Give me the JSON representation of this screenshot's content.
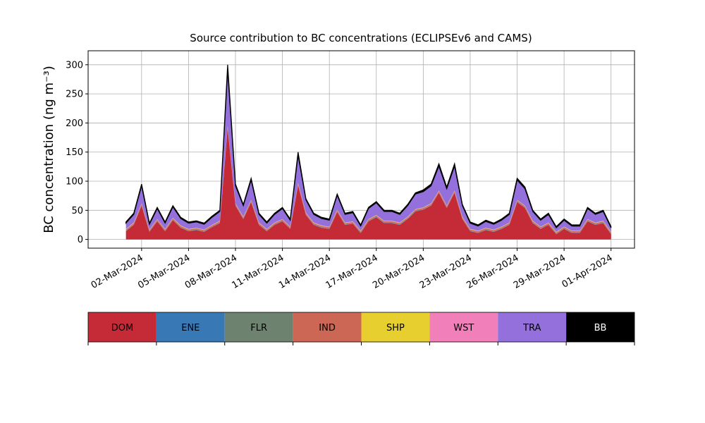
{
  "chart_data": {
    "type": "stacked_area",
    "title": "Source contribution to BC concentrations (ECLIPSEv6 and CAMS)",
    "y_label": "BC concentration (ng m⁻³)",
    "x": [
      "2024-03-01T00:00",
      "2024-03-01T12:00",
      "2024-03-02T00:00",
      "2024-03-02T12:00",
      "2024-03-03T00:00",
      "2024-03-03T12:00",
      "2024-03-04T00:00",
      "2024-03-04T12:00",
      "2024-03-05T00:00",
      "2024-03-05T12:00",
      "2024-03-06T00:00",
      "2024-03-06T12:00",
      "2024-03-07T00:00",
      "2024-03-07T12:00",
      "2024-03-08T00:00",
      "2024-03-08T12:00",
      "2024-03-09T00:00",
      "2024-03-09T12:00",
      "2024-03-10T00:00",
      "2024-03-10T12:00",
      "2024-03-11T00:00",
      "2024-03-11T12:00",
      "2024-03-12T00:00",
      "2024-03-12T12:00",
      "2024-03-13T00:00",
      "2024-03-13T12:00",
      "2024-03-14T00:00",
      "2024-03-14T12:00",
      "2024-03-15T00:00",
      "2024-03-15T12:00",
      "2024-03-16T00:00",
      "2024-03-16T12:00",
      "2024-03-17T00:00",
      "2024-03-17T12:00",
      "2024-03-18T00:00",
      "2024-03-18T12:00",
      "2024-03-19T00:00",
      "2024-03-19T12:00",
      "2024-03-20T00:00",
      "2024-03-20T12:00",
      "2024-03-21T00:00",
      "2024-03-21T12:00",
      "2024-03-22T00:00",
      "2024-03-22T12:00",
      "2024-03-23T00:00",
      "2024-03-23T12:00",
      "2024-03-24T00:00",
      "2024-03-24T12:00",
      "2024-03-25T00:00",
      "2024-03-25T12:00",
      "2024-03-26T00:00",
      "2024-03-26T12:00",
      "2024-03-27T00:00",
      "2024-03-27T12:00",
      "2024-03-28T00:00",
      "2024-03-28T12:00",
      "2024-03-29T00:00",
      "2024-03-29T12:00",
      "2024-03-30T00:00",
      "2024-03-30T12:00",
      "2024-03-31T00:00",
      "2024-03-31T12:00",
      "2024-04-01T00:00"
    ],
    "series": [
      {
        "name": "DOM",
        "color": "#c52a37",
        "values": [
          14,
          25,
          58,
          13,
          31,
          14,
          33,
          20,
          14,
          16,
          13,
          21,
          28,
          191,
          58,
          35,
          64,
          25,
          14,
          25,
          31,
          18,
          93,
          42,
          25,
          20,
          18,
          47,
          25,
          27,
          11,
          31,
          38,
          28,
          28,
          25,
          35,
          48,
          51,
          58,
          80,
          54,
          80,
          35,
          14,
          11,
          16,
          13,
          18,
          25,
          64,
          54,
          28,
          18,
          25,
          9,
          18,
          11,
          11,
          31,
          25,
          28,
          9
        ]
      },
      {
        "name": "ENE",
        "color": "#3878b4",
        "values": [
          0.5,
          0.5,
          0.5,
          0.5,
          0.5,
          0.5,
          0.5,
          0.5,
          0.5,
          0.5,
          0.5,
          0.5,
          0.5,
          0.5,
          0.5,
          0.5,
          0.5,
          0.5,
          0.5,
          0.5,
          0.5,
          0.5,
          0.5,
          0.5,
          0.5,
          0.5,
          0.5,
          0.5,
          0.5,
          0.5,
          0.5,
          0.5,
          0.5,
          0.5,
          0.5,
          0.5,
          0.5,
          0.5,
          0.5,
          0.5,
          0.5,
          0.5,
          0.5,
          0.5,
          0.5,
          0.5,
          0.5,
          0.5,
          0.5,
          0.5,
          0.5,
          0.5,
          0.5,
          0.5,
          0.5,
          0.5,
          0.5,
          0.5,
          0.5,
          0.5,
          0.5,
          0.5,
          0.5
        ]
      },
      {
        "name": "FLR",
        "color": "#6e8270",
        "values": [
          0.5,
          0.5,
          0.5,
          0.5,
          0.5,
          0.5,
          0.5,
          0.5,
          0.5,
          0.5,
          0.5,
          0.5,
          0.5,
          0.5,
          0.5,
          0.5,
          0.5,
          0.5,
          0.5,
          0.5,
          0.5,
          0.5,
          0.5,
          0.5,
          0.5,
          0.5,
          0.5,
          0.5,
          0.5,
          0.5,
          0.5,
          0.5,
          0.5,
          0.5,
          0.5,
          0.5,
          0.5,
          0.5,
          0.5,
          0.5,
          0.5,
          0.5,
          0.5,
          0.5,
          0.5,
          0.5,
          0.5,
          0.5,
          0.5,
          0.5,
          0.5,
          0.5,
          0.5,
          0.5,
          0.5,
          0.5,
          0.5,
          0.5,
          0.5,
          0.5,
          0.5,
          0.5,
          0.5
        ]
      },
      {
        "name": "IND",
        "color": "#cc6655",
        "values": [
          2,
          2,
          2,
          2,
          2,
          2,
          2,
          2,
          2,
          2,
          2,
          2,
          2,
          2,
          2,
          2,
          2,
          2,
          2,
          2,
          2,
          2,
          2,
          2,
          2,
          2,
          2,
          2,
          2,
          2,
          2,
          2,
          2,
          2,
          2,
          2,
          2,
          2,
          2,
          2,
          2,
          2,
          2,
          2,
          2,
          2,
          2,
          2,
          2,
          2,
          2,
          2,
          2,
          2,
          2,
          2,
          2,
          2,
          2,
          2,
          2,
          2,
          2
        ]
      },
      {
        "name": "SHP",
        "color": "#e6cf2e",
        "values": [
          0.5,
          0.5,
          0.5,
          0.5,
          0.5,
          0.5,
          0.5,
          0.5,
          0.5,
          0.5,
          0.5,
          0.5,
          0.5,
          0.5,
          0.5,
          0.5,
          0.5,
          0.5,
          0.5,
          0.5,
          0.5,
          0.5,
          0.5,
          0.5,
          0.5,
          0.5,
          0.5,
          0.5,
          0.5,
          0.5,
          0.5,
          0.5,
          0.5,
          0.5,
          0.5,
          0.5,
          0.5,
          0.5,
          0.5,
          0.5,
          0.5,
          0.5,
          0.5,
          0.5,
          0.5,
          0.5,
          0.5,
          0.5,
          0.5,
          0.5,
          0.5,
          0.5,
          0.5,
          0.5,
          0.5,
          0.5,
          0.5,
          0.5,
          0.5,
          0.5,
          0.5,
          0.5,
          0.5
        ]
      },
      {
        "name": "WST",
        "color": "#f07fba",
        "values": [
          0.5,
          0.5,
          0.5,
          0.5,
          0.5,
          0.5,
          0.5,
          0.5,
          0.5,
          0.5,
          0.5,
          0.5,
          0.5,
          0.5,
          0.5,
          0.5,
          0.5,
          0.5,
          0.5,
          0.5,
          0.5,
          0.5,
          0.5,
          0.5,
          0.5,
          0.5,
          0.5,
          0.5,
          0.5,
          0.5,
          0.5,
          0.5,
          0.5,
          0.5,
          0.5,
          0.5,
          0.5,
          0.5,
          0.5,
          0.5,
          0.5,
          0.5,
          0.5,
          0.5,
          0.5,
          0.5,
          0.5,
          0.5,
          0.5,
          0.5,
          0.5,
          0.5,
          0.5,
          0.5,
          0.5,
          0.5,
          0.5,
          0.5,
          0.5,
          0.5,
          0.5,
          0.5,
          0.5
        ]
      },
      {
        "name": "TRA",
        "color": "#9370db",
        "values": [
          10,
          14,
          30,
          9,
          18,
          10,
          19,
          12,
          10,
          10,
          9,
          13,
          16,
          96,
          30,
          19,
          34,
          14,
          10,
          14,
          18,
          11,
          48,
          22,
          14,
          12,
          11,
          25,
          14,
          15,
          8,
          18,
          21,
          16,
          16,
          14,
          19,
          26,
          27,
          30,
          42,
          29,
          42,
          19,
          10,
          8,
          11,
          9,
          11,
          14,
          34,
          29,
          16,
          11,
          14,
          7,
          11,
          8,
          8,
          18,
          14,
          16,
          7
        ]
      },
      {
        "name": "BB",
        "color": "#000000",
        "values": [
          2,
          2,
          3,
          2,
          2,
          2,
          2,
          2,
          2,
          2,
          2,
          2,
          2,
          9,
          3,
          2,
          3,
          2,
          2,
          2,
          2,
          2,
          5,
          2,
          2,
          2,
          2,
          2,
          2,
          2,
          2,
          2,
          2,
          2,
          2,
          2,
          2,
          2,
          3,
          3,
          4,
          3,
          4,
          2,
          2,
          2,
          2,
          2,
          2,
          2,
          3,
          3,
          2,
          2,
          2,
          2,
          2,
          2,
          2,
          2,
          2,
          2,
          2
        ]
      }
    ],
    "xlim": [
      "2024-02-27T14:00",
      "2024-04-02T12:00"
    ],
    "xticks": [
      {
        "value": "2024-03-02T00:00",
        "label": "02-Mar-2024"
      },
      {
        "value": "2024-03-05T00:00",
        "label": "05-Mar-2024"
      },
      {
        "value": "2024-03-08T00:00",
        "label": "08-Mar-2024"
      },
      {
        "value": "2024-03-11T00:00",
        "label": "11-Mar-2024"
      },
      {
        "value": "2024-03-14T00:00",
        "label": "14-Mar-2024"
      },
      {
        "value": "2024-03-17T00:00",
        "label": "17-Mar-2024"
      },
      {
        "value": "2024-03-20T00:00",
        "label": "20-Mar-2024"
      },
      {
        "value": "2024-03-23T00:00",
        "label": "23-Mar-2024"
      },
      {
        "value": "2024-03-26T00:00",
        "label": "26-Mar-2024"
      },
      {
        "value": "2024-03-29T00:00",
        "label": "29-Mar-2024"
      },
      {
        "value": "2024-04-01T00:00",
        "label": "01-Apr-2024"
      }
    ],
    "ylim": [
      -15,
      324
    ],
    "yticks": [
      0,
      50,
      100,
      150,
      200,
      250,
      300
    ],
    "grid": true
  }
}
